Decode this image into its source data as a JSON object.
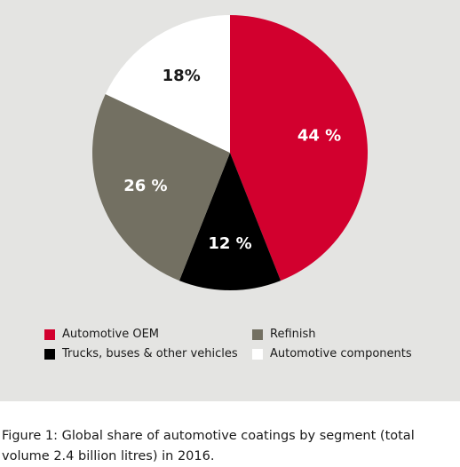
{
  "chart_data": {
    "type": "pie",
    "categories": [
      "Automotive OEM",
      "Trucks, buses & other vehicles",
      "Refinish",
      "Automotive components"
    ],
    "values": [
      44,
      12,
      26,
      18
    ],
    "value_labels": [
      "44 %",
      "12 %",
      "26 %",
      "18%"
    ],
    "colors": [
      "#d2002e",
      "#000000",
      "#737062",
      "#ffffff"
    ],
    "label_colors": [
      "#ffffff",
      "#ffffff",
      "#ffffff",
      "#1a1a1a"
    ],
    "start": "12 o'clock",
    "direction": "clockwise",
    "legend": [
      {
        "label": "Automotive OEM",
        "color": "#d2002e"
      },
      {
        "label": "Refinish",
        "color": "#737062"
      },
      {
        "label": "Trucks, buses & other vehicles",
        "color": "#000000"
      },
      {
        "label": "Automotive components",
        "color": "#ffffff"
      }
    ],
    "legend_placement": "bottom",
    "background_color": "#e4e4e2"
  },
  "caption": {
    "line1": "Figure 1: Global share of automotive coatings by segment (total",
    "line2": "volume 2.4 billion litres) in 2016."
  }
}
